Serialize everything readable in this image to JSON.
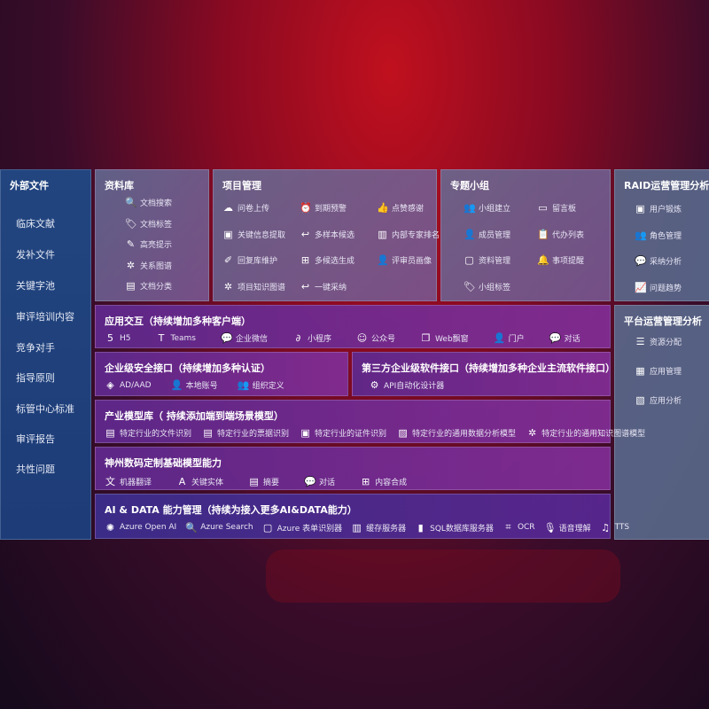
{
  "sidebar": {
    "title": "外部文件",
    "items": [
      "临床文献",
      "发补文件",
      "关键字池",
      "审评培训内容",
      "竞争对手",
      "指导原则",
      "标管中心标准",
      "审评报告",
      "共性问题"
    ]
  },
  "library": {
    "title": "资料库",
    "items": [
      {
        "icon": "doc-search-icon",
        "label": "文档搜索"
      },
      {
        "icon": "tag-icon",
        "label": "文档标签"
      },
      {
        "icon": "pen-icon",
        "label": "高亮提示"
      },
      {
        "icon": "graph-icon",
        "label": "关系图谱"
      },
      {
        "icon": "doc-category-icon",
        "label": "文档分类"
      }
    ]
  },
  "project": {
    "title": "项目管理",
    "items": [
      {
        "icon": "cloud-upload-icon",
        "label": "问卷上传"
      },
      {
        "icon": "alarm-icon",
        "label": "到期预警"
      },
      {
        "icon": "thumbs-up-icon",
        "label": "点赞感谢"
      },
      {
        "icon": "window-icon",
        "label": "关键信息提取"
      },
      {
        "icon": "reply-icon",
        "label": "多样本候选"
      },
      {
        "icon": "ranking-icon",
        "label": "内部专家排名"
      },
      {
        "icon": "edit-icon",
        "label": "回复库维护"
      },
      {
        "icon": "puzzle-icon",
        "label": "多候选生成"
      },
      {
        "icon": "person-icon",
        "label": "评审员画像"
      },
      {
        "icon": "graph-icon",
        "label": "项目知识图谱"
      },
      {
        "icon": "reply-icon",
        "label": "一键采纳"
      }
    ]
  },
  "group": {
    "title": "专题小组",
    "items": [
      {
        "icon": "group-icon",
        "label": "小组建立"
      },
      {
        "icon": "bbs-icon",
        "label": "留言板"
      },
      {
        "icon": "add-user-icon",
        "label": "成员管理"
      },
      {
        "icon": "clipboard-icon",
        "label": "代办列表"
      },
      {
        "icon": "folder-icon",
        "label": "资料管理"
      },
      {
        "icon": "bell-icon",
        "label": "事项提醒"
      },
      {
        "icon": "tag-icon",
        "label": "小组标签"
      }
    ]
  },
  "raid": {
    "title": "RAID运营管理分析",
    "items": [
      {
        "icon": "id-card-icon",
        "label": "用户锻炼"
      },
      {
        "icon": "users-icon",
        "label": "角色管理"
      },
      {
        "icon": "qa-icon",
        "label": "采纳分析"
      },
      {
        "icon": "trend-icon",
        "label": "问题趋势"
      }
    ]
  },
  "platform": {
    "title": "平台运营管理分析",
    "items": [
      {
        "icon": "list-icon",
        "label": "资源分配"
      },
      {
        "icon": "apps-icon",
        "label": "应用管理"
      },
      {
        "icon": "analytics-icon",
        "label": "应用分析"
      }
    ]
  },
  "interaction": {
    "title": "应用交互（持续增加多种客户端）",
    "items": [
      {
        "icon": "html5-icon",
        "label": "H5"
      },
      {
        "icon": "teams-icon",
        "label": "Teams"
      },
      {
        "icon": "wechat-icon",
        "label": "企业微信"
      },
      {
        "icon": "miniprogram-icon",
        "label": "小程序"
      },
      {
        "icon": "official-account-icon",
        "label": "公众号"
      },
      {
        "icon": "web-window-icon",
        "label": "Web飘窗"
      },
      {
        "icon": "portal-icon",
        "label": "门户"
      },
      {
        "icon": "chat-icon",
        "label": "对话"
      }
    ]
  },
  "security": {
    "title": "企业级安全接口（持续增加多种认证）",
    "items": [
      {
        "icon": "ad-icon",
        "label": "AD/AAD"
      },
      {
        "icon": "local-account-icon",
        "label": "本地账号"
      },
      {
        "icon": "org-icon",
        "label": "组织定义"
      }
    ]
  },
  "thirdparty": {
    "title": "第三方企业级软件接口（持续增加多种企业主流软件接口）",
    "items": [
      {
        "icon": "gear-icon",
        "label": "API自动化设计器"
      }
    ]
  },
  "industry": {
    "title": "产业模型库（ 持续添加端到端场景模型）",
    "items": [
      {
        "icon": "file-icon",
        "label": "特定行业的文件识别"
      },
      {
        "icon": "receipt-icon",
        "label": "特定行业的票据识别"
      },
      {
        "icon": "id-card-icon",
        "label": "特定行业的证件识别"
      },
      {
        "icon": "chart-icon",
        "label": "特定行业的通用数据分析模型"
      },
      {
        "icon": "graph-icon",
        "label": "特定行业的通用知识图谱模型"
      }
    ]
  },
  "base": {
    "title": "神州数码定制基础模型能力",
    "items": [
      {
        "icon": "translate-icon",
        "label": "机器翻译"
      },
      {
        "icon": "entity-icon",
        "label": "关键实体"
      },
      {
        "icon": "summary-icon",
        "label": "摘要"
      },
      {
        "icon": "chat-icon",
        "label": "对话"
      },
      {
        "icon": "puzzle-icon",
        "label": "内容合成"
      }
    ]
  },
  "aidata": {
    "title": "AI & DATA 能力管理（持续为接入更多AI&DATA能力）",
    "items": [
      {
        "icon": "openai-icon",
        "label": "Azure Open AI"
      },
      {
        "icon": "search-icon",
        "label": "Azure Search"
      },
      {
        "icon": "form-icon",
        "label": "Azure 表单识别器"
      },
      {
        "icon": "cache-icon",
        "label": "缓存服务器"
      },
      {
        "icon": "sql-icon",
        "label": "SQL数据库服务器"
      },
      {
        "icon": "ocr-icon",
        "label": "OCR"
      },
      {
        "icon": "speech-icon",
        "label": "语音理解"
      },
      {
        "icon": "tts-icon",
        "label": "TTS"
      }
    ]
  }
}
